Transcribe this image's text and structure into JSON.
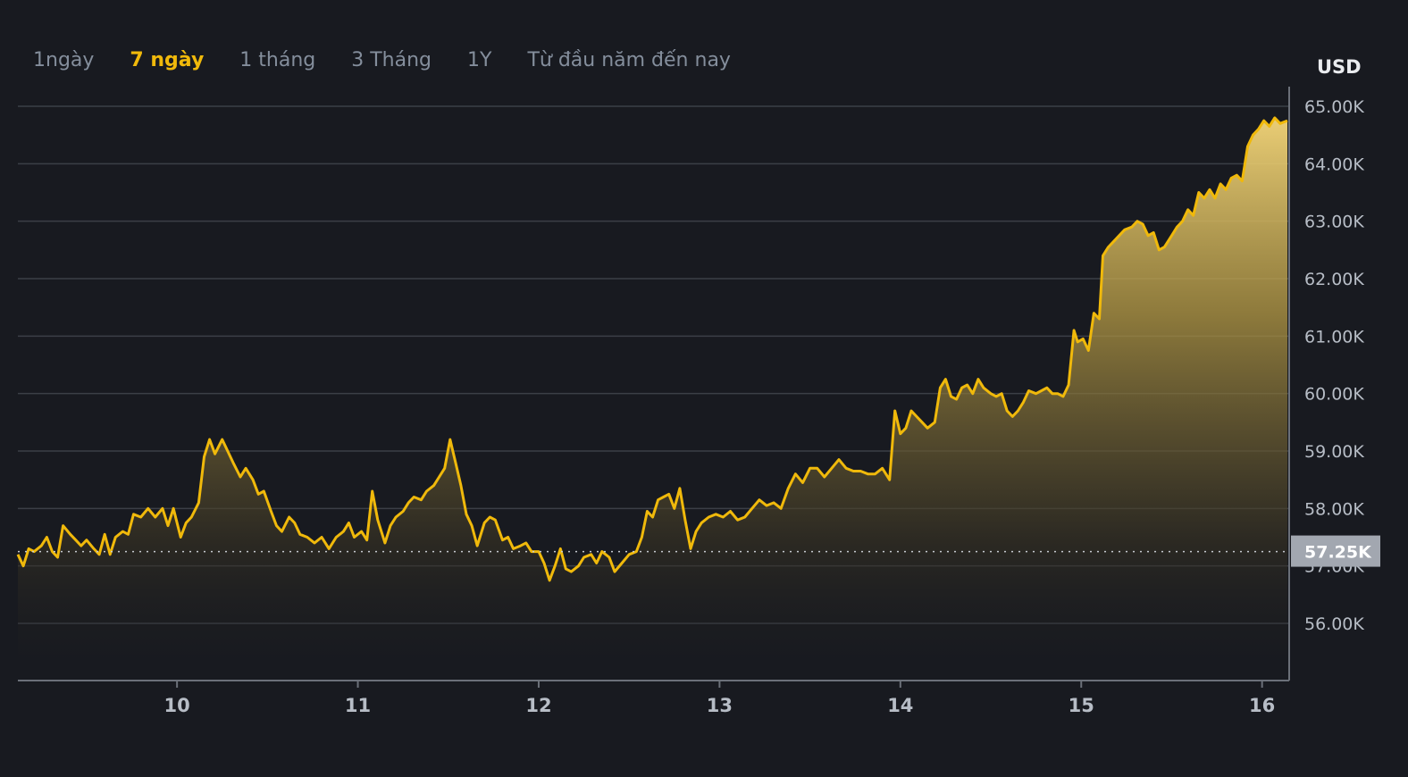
{
  "tabs": [
    {
      "label": "1ngày",
      "active": false
    },
    {
      "label": "7 ngày",
      "active": true
    },
    {
      "label": "1 tháng",
      "active": false
    },
    {
      "label": "3 Tháng",
      "active": false
    },
    {
      "label": "1Y",
      "active": false
    },
    {
      "label": "Từ đầu năm đến nay",
      "active": false
    }
  ],
  "currency": "USD",
  "colors": {
    "background": "#181a20",
    "line": "#f0b90b",
    "grid": "#3b3f47",
    "text": "#b7bdc6",
    "tab_active": "#f0b90b",
    "tab_inactive": "#848e9c"
  },
  "chart_data": {
    "type": "area",
    "title": "",
    "xlabel": "",
    "ylabel": "",
    "x_ticks": [
      "10",
      "11",
      "12",
      "13",
      "14",
      "15",
      "16"
    ],
    "y_ticks": [
      "56.00K",
      "57.00K",
      "58.00K",
      "59.00K",
      "60.00K",
      "61.00K",
      "62.00K",
      "63.00K",
      "64.00K",
      "65.00K"
    ],
    "xlim": [
      9.12,
      16.14
    ],
    "ylim": [
      55.0,
      65.0
    ],
    "grid": true,
    "current_price_label": "57.25K",
    "current_price_value": 57.25,
    "series": [
      {
        "values": [
          [
            9.12,
            57.2
          ],
          [
            9.15,
            57.0
          ],
          [
            9.18,
            57.3
          ],
          [
            9.21,
            57.25
          ],
          [
            9.25,
            57.35
          ],
          [
            9.28,
            57.5
          ],
          [
            9.31,
            57.25
          ],
          [
            9.34,
            57.15
          ],
          [
            9.37,
            57.7
          ],
          [
            9.41,
            57.55
          ],
          [
            9.44,
            57.45
          ],
          [
            9.47,
            57.35
          ],
          [
            9.5,
            57.45
          ],
          [
            9.54,
            57.3
          ],
          [
            9.57,
            57.2
          ],
          [
            9.6,
            57.55
          ],
          [
            9.63,
            57.2
          ],
          [
            9.66,
            57.5
          ],
          [
            9.7,
            57.6
          ],
          [
            9.73,
            57.55
          ],
          [
            9.76,
            57.9
          ],
          [
            9.8,
            57.85
          ],
          [
            9.84,
            58.0
          ],
          [
            9.88,
            57.85
          ],
          [
            9.92,
            58.0
          ],
          [
            9.95,
            57.7
          ],
          [
            9.98,
            58.0
          ],
          [
            10.02,
            57.5
          ],
          [
            10.05,
            57.75
          ],
          [
            10.08,
            57.85
          ],
          [
            10.12,
            58.1
          ],
          [
            10.15,
            58.9
          ],
          [
            10.18,
            59.2
          ],
          [
            10.21,
            58.95
          ],
          [
            10.25,
            59.2
          ],
          [
            10.28,
            59.0
          ],
          [
            10.31,
            58.8
          ],
          [
            10.35,
            58.55
          ],
          [
            10.38,
            58.7
          ],
          [
            10.42,
            58.5
          ],
          [
            10.45,
            58.25
          ],
          [
            10.48,
            58.3
          ],
          [
            10.52,
            57.95
          ],
          [
            10.55,
            57.7
          ],
          [
            10.58,
            57.6
          ],
          [
            10.62,
            57.85
          ],
          [
            10.65,
            57.75
          ],
          [
            10.68,
            57.55
          ],
          [
            10.72,
            57.5
          ],
          [
            10.76,
            57.4
          ],
          [
            10.8,
            57.5
          ],
          [
            10.84,
            57.3
          ],
          [
            10.88,
            57.5
          ],
          [
            10.92,
            57.6
          ],
          [
            10.95,
            57.75
          ],
          [
            10.98,
            57.5
          ],
          [
            11.02,
            57.6
          ],
          [
            11.05,
            57.45
          ],
          [
            11.08,
            58.3
          ],
          [
            11.11,
            57.8
          ],
          [
            11.15,
            57.4
          ],
          [
            11.18,
            57.7
          ],
          [
            11.21,
            57.85
          ],
          [
            11.25,
            57.95
          ],
          [
            11.28,
            58.1
          ],
          [
            11.31,
            58.2
          ],
          [
            11.35,
            58.15
          ],
          [
            11.38,
            58.3
          ],
          [
            11.42,
            58.4
          ],
          [
            11.45,
            58.55
          ],
          [
            11.48,
            58.7
          ],
          [
            11.51,
            59.2
          ],
          [
            11.54,
            58.8
          ],
          [
            11.57,
            58.4
          ],
          [
            11.6,
            57.9
          ],
          [
            11.63,
            57.7
          ],
          [
            11.66,
            57.35
          ],
          [
            11.7,
            57.75
          ],
          [
            11.73,
            57.85
          ],
          [
            11.76,
            57.8
          ],
          [
            11.8,
            57.45
          ],
          [
            11.83,
            57.5
          ],
          [
            11.86,
            57.3
          ],
          [
            11.9,
            57.35
          ],
          [
            11.93,
            57.4
          ],
          [
            11.96,
            57.25
          ],
          [
            12.0,
            57.25
          ],
          [
            12.03,
            57.05
          ],
          [
            12.06,
            56.75
          ],
          [
            12.09,
            57.0
          ],
          [
            12.12,
            57.3
          ],
          [
            12.15,
            56.95
          ],
          [
            12.18,
            56.9
          ],
          [
            12.22,
            57.0
          ],
          [
            12.25,
            57.15
          ],
          [
            12.29,
            57.2
          ],
          [
            12.32,
            57.05
          ],
          [
            12.35,
            57.25
          ],
          [
            12.39,
            57.15
          ],
          [
            12.42,
            56.9
          ],
          [
            12.46,
            57.05
          ],
          [
            12.5,
            57.2
          ],
          [
            12.54,
            57.25
          ],
          [
            12.57,
            57.5
          ],
          [
            12.6,
            57.95
          ],
          [
            12.63,
            57.85
          ],
          [
            12.66,
            58.15
          ],
          [
            12.69,
            58.2
          ],
          [
            12.72,
            58.25
          ],
          [
            12.75,
            58.0
          ],
          [
            12.78,
            58.35
          ],
          [
            12.81,
            57.8
          ],
          [
            12.84,
            57.3
          ],
          [
            12.87,
            57.6
          ],
          [
            12.9,
            57.75
          ],
          [
            12.94,
            57.85
          ],
          [
            12.98,
            57.9
          ],
          [
            13.02,
            57.85
          ],
          [
            13.06,
            57.95
          ],
          [
            13.1,
            57.8
          ],
          [
            13.14,
            57.85
          ],
          [
            13.18,
            58.0
          ],
          [
            13.22,
            58.15
          ],
          [
            13.26,
            58.05
          ],
          [
            13.3,
            58.1
          ],
          [
            13.34,
            58.0
          ],
          [
            13.38,
            58.35
          ],
          [
            13.42,
            58.6
          ],
          [
            13.46,
            58.45
          ],
          [
            13.5,
            58.7
          ],
          [
            13.54,
            58.7
          ],
          [
            13.58,
            58.55
          ],
          [
            13.62,
            58.7
          ],
          [
            13.66,
            58.85
          ],
          [
            13.7,
            58.7
          ],
          [
            13.74,
            58.65
          ],
          [
            13.78,
            58.65
          ],
          [
            13.82,
            58.6
          ],
          [
            13.86,
            58.6
          ],
          [
            13.9,
            58.7
          ],
          [
            13.94,
            58.5
          ],
          [
            13.97,
            59.7
          ],
          [
            14.0,
            59.3
          ],
          [
            14.03,
            59.4
          ],
          [
            14.06,
            59.7
          ],
          [
            14.09,
            59.6
          ],
          [
            14.12,
            59.5
          ],
          [
            14.15,
            59.4
          ],
          [
            14.19,
            59.5
          ],
          [
            14.22,
            60.1
          ],
          [
            14.25,
            60.25
          ],
          [
            14.28,
            59.95
          ],
          [
            14.31,
            59.9
          ],
          [
            14.34,
            60.1
          ],
          [
            14.37,
            60.15
          ],
          [
            14.4,
            60.0
          ],
          [
            14.43,
            60.25
          ],
          [
            14.46,
            60.1
          ],
          [
            14.5,
            60.0
          ],
          [
            14.53,
            59.95
          ],
          [
            14.56,
            60.0
          ],
          [
            14.59,
            59.7
          ],
          [
            14.62,
            59.6
          ],
          [
            14.65,
            59.7
          ],
          [
            14.68,
            59.85
          ],
          [
            14.71,
            60.05
          ],
          [
            14.75,
            60.0
          ],
          [
            14.78,
            60.05
          ],
          [
            14.81,
            60.1
          ],
          [
            14.84,
            60.0
          ],
          [
            14.87,
            60.0
          ],
          [
            14.9,
            59.95
          ],
          [
            14.93,
            60.15
          ],
          [
            14.96,
            61.1
          ],
          [
            14.98,
            60.9
          ],
          [
            15.01,
            60.95
          ],
          [
            15.04,
            60.75
          ],
          [
            15.07,
            61.4
          ],
          [
            15.1,
            61.3
          ],
          [
            15.12,
            62.4
          ],
          [
            15.15,
            62.55
          ],
          [
            15.18,
            62.65
          ],
          [
            15.21,
            62.75
          ],
          [
            15.24,
            62.85
          ],
          [
            15.28,
            62.9
          ],
          [
            15.31,
            63.0
          ],
          [
            15.34,
            62.95
          ],
          [
            15.37,
            62.75
          ],
          [
            15.4,
            62.8
          ],
          [
            15.43,
            62.5
          ],
          [
            15.46,
            62.55
          ],
          [
            15.5,
            62.75
          ],
          [
            15.53,
            62.9
          ],
          [
            15.56,
            63.0
          ],
          [
            15.59,
            63.2
          ],
          [
            15.62,
            63.1
          ],
          [
            15.65,
            63.5
          ],
          [
            15.68,
            63.4
          ],
          [
            15.71,
            63.55
          ],
          [
            15.74,
            63.4
          ],
          [
            15.77,
            63.65
          ],
          [
            15.8,
            63.55
          ],
          [
            15.83,
            63.75
          ],
          [
            15.86,
            63.8
          ],
          [
            15.89,
            63.7
          ],
          [
            15.92,
            64.3
          ],
          [
            15.95,
            64.5
          ],
          [
            15.98,
            64.6
          ],
          [
            16.01,
            64.75
          ],
          [
            16.04,
            64.65
          ],
          [
            16.07,
            64.8
          ],
          [
            16.1,
            64.7
          ],
          [
            16.14,
            64.75
          ]
        ]
      }
    ]
  }
}
